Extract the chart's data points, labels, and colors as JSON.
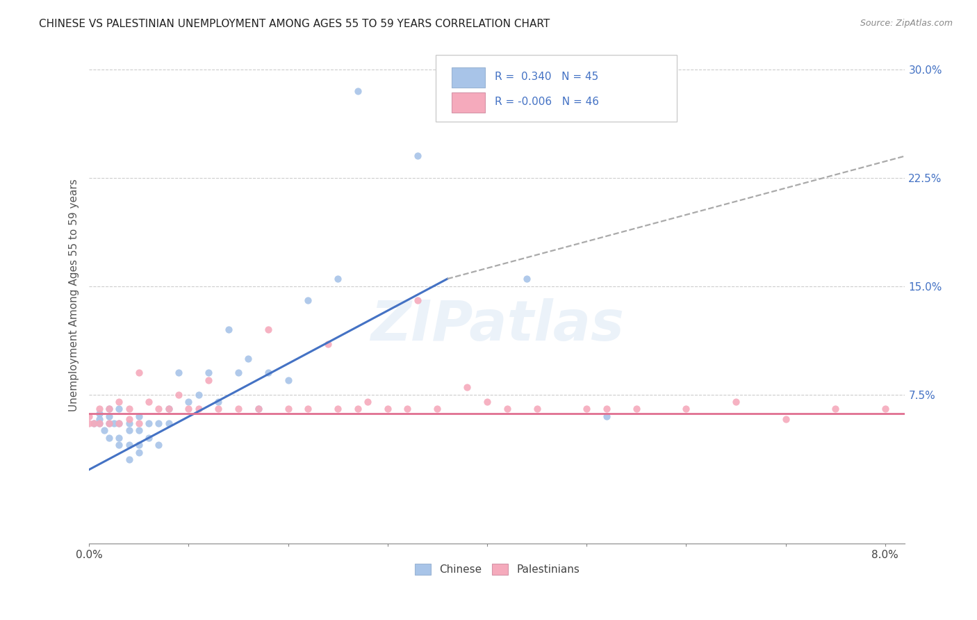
{
  "title": "CHINESE VS PALESTINIAN UNEMPLOYMENT AMONG AGES 55 TO 59 YEARS CORRELATION CHART",
  "source": "Source: ZipAtlas.com",
  "ylabel": "Unemployment Among Ages 55 to 59 years",
  "xlim": [
    0.0,
    0.082
  ],
  "ylim": [
    -0.028,
    0.315
  ],
  "chinese_R": 0.34,
  "chinese_N": 45,
  "palestinian_R": -0.006,
  "palestinian_N": 46,
  "chinese_color": "#a8c4e8",
  "palestinian_color": "#f5aabc",
  "chinese_line_color": "#4472c4",
  "palestinian_line_color": "#e07090",
  "dashed_line_color": "#aaaaaa",
  "watermark": "ZIPatlas",
  "chinese_scatter_x": [
    0.0005,
    0.001,
    0.001,
    0.001,
    0.0015,
    0.002,
    0.002,
    0.002,
    0.002,
    0.0025,
    0.003,
    0.003,
    0.003,
    0.003,
    0.004,
    0.004,
    0.004,
    0.004,
    0.005,
    0.005,
    0.005,
    0.005,
    0.006,
    0.006,
    0.007,
    0.007,
    0.008,
    0.008,
    0.009,
    0.01,
    0.011,
    0.012,
    0.013,
    0.014,
    0.015,
    0.016,
    0.017,
    0.018,
    0.02,
    0.022,
    0.025,
    0.027,
    0.033,
    0.044,
    0.052
  ],
  "chinese_scatter_y": [
    0.055,
    0.055,
    0.058,
    0.062,
    0.05,
    0.045,
    0.055,
    0.06,
    0.065,
    0.055,
    0.04,
    0.045,
    0.055,
    0.065,
    0.03,
    0.04,
    0.05,
    0.055,
    0.035,
    0.04,
    0.05,
    0.06,
    0.045,
    0.055,
    0.04,
    0.055,
    0.055,
    0.065,
    0.09,
    0.07,
    0.075,
    0.09,
    0.07,
    0.12,
    0.09,
    0.1,
    0.065,
    0.09,
    0.085,
    0.14,
    0.155,
    0.285,
    0.24,
    0.155,
    0.06
  ],
  "palestinian_scatter_x": [
    0.0,
    0.0,
    0.0005,
    0.001,
    0.001,
    0.002,
    0.002,
    0.003,
    0.003,
    0.004,
    0.004,
    0.005,
    0.005,
    0.006,
    0.007,
    0.008,
    0.009,
    0.01,
    0.011,
    0.012,
    0.013,
    0.015,
    0.017,
    0.018,
    0.02,
    0.022,
    0.024,
    0.025,
    0.027,
    0.028,
    0.03,
    0.032,
    0.033,
    0.035,
    0.038,
    0.04,
    0.042,
    0.045,
    0.05,
    0.052,
    0.055,
    0.06,
    0.065,
    0.07,
    0.075,
    0.08
  ],
  "palestinian_scatter_y": [
    0.055,
    0.06,
    0.055,
    0.055,
    0.065,
    0.055,
    0.065,
    0.055,
    0.07,
    0.058,
    0.065,
    0.055,
    0.09,
    0.07,
    0.065,
    0.065,
    0.075,
    0.065,
    0.065,
    0.085,
    0.065,
    0.065,
    0.065,
    0.12,
    0.065,
    0.065,
    0.11,
    0.065,
    0.065,
    0.07,
    0.065,
    0.065,
    0.14,
    0.065,
    0.08,
    0.07,
    0.065,
    0.065,
    0.065,
    0.065,
    0.065,
    0.065,
    0.07,
    0.058,
    0.065,
    0.065
  ],
  "chinese_trend_x0": 0.0,
  "chinese_trend_x1": 0.036,
  "chinese_trend_y0": 0.023,
  "chinese_trend_y1": 0.155,
  "dashed_trend_x0": 0.036,
  "dashed_trend_x1": 0.082,
  "dashed_trend_y0": 0.155,
  "dashed_trend_y1": 0.24,
  "palestinian_trend_y": 0.062,
  "x_tick_positions": [
    0.0,
    0.01,
    0.02,
    0.03,
    0.04,
    0.05,
    0.06,
    0.07,
    0.08
  ],
  "x_tick_labels": [
    "0.0%",
    "",
    "",
    "",
    "",
    "",
    "",
    "",
    "8.0%"
  ],
  "y_tick_positions": [
    0.0,
    0.075,
    0.15,
    0.225,
    0.3
  ],
  "y_tick_labels": [
    "",
    "7.5%",
    "15.0%",
    "22.5%",
    "30.0%"
  ]
}
